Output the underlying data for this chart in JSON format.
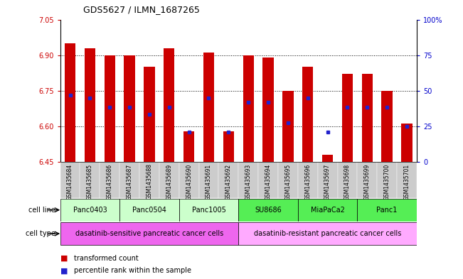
{
  "title": "GDS5627 / ILMN_1687265",
  "samples": [
    "GSM1435684",
    "GSM1435685",
    "GSM1435686",
    "GSM1435687",
    "GSM1435688",
    "GSM1435689",
    "GSM1435690",
    "GSM1435691",
    "GSM1435692",
    "GSM1435693",
    "GSM1435694",
    "GSM1435695",
    "GSM1435696",
    "GSM1435697",
    "GSM1435698",
    "GSM1435699",
    "GSM1435700",
    "GSM1435701"
  ],
  "bar_values": [
    6.95,
    6.93,
    6.9,
    6.9,
    6.85,
    6.93,
    6.58,
    6.91,
    6.58,
    6.9,
    6.89,
    6.75,
    6.85,
    6.48,
    6.82,
    6.82,
    6.75,
    6.61
  ],
  "percentile_values": [
    6.73,
    6.72,
    6.68,
    6.68,
    6.65,
    6.68,
    6.575,
    6.72,
    6.575,
    6.7,
    6.7,
    6.615,
    6.72,
    6.575,
    6.68,
    6.68,
    6.68,
    6.6
  ],
  "ylim": [
    6.45,
    7.05
  ],
  "yticks": [
    6.45,
    6.6,
    6.75,
    6.9,
    7.05
  ],
  "right_yticks": [
    0,
    25,
    50,
    75,
    100
  ],
  "bar_color": "#cc0000",
  "percentile_color": "#2222cc",
  "cell_lines": [
    {
      "name": "Panc0403",
      "start": 0,
      "end": 2,
      "color": "#ccffcc"
    },
    {
      "name": "Panc0504",
      "start": 3,
      "end": 5,
      "color": "#ccffcc"
    },
    {
      "name": "Panc1005",
      "start": 6,
      "end": 8,
      "color": "#ccffcc"
    },
    {
      "name": "SU8686",
      "start": 9,
      "end": 11,
      "color": "#55ee55"
    },
    {
      "name": "MiaPaCa2",
      "start": 12,
      "end": 14,
      "color": "#55ee55"
    },
    {
      "name": "Panc1",
      "start": 15,
      "end": 17,
      "color": "#55ee55"
    }
  ],
  "cell_types": [
    {
      "name": "dasatinib-sensitive pancreatic cancer cells",
      "start": 0,
      "end": 8,
      "color": "#ee66ee"
    },
    {
      "name": "dasatinib-resistant pancreatic cancer cells",
      "start": 9,
      "end": 17,
      "color": "#ffaaff"
    }
  ],
  "sample_bg_color": "#cccccc",
  "xlabel_color": "#cc0000",
  "ylabel_right_color": "#0000cc",
  "grid_yticks": [
    6.6,
    6.75,
    6.9
  ]
}
